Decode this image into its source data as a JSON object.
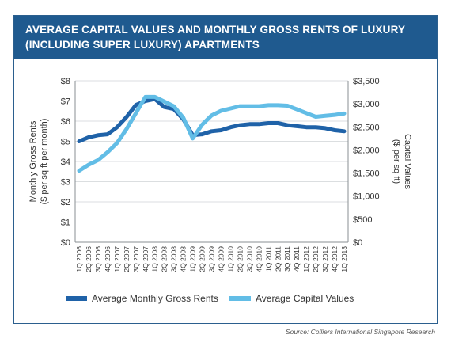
{
  "header": {
    "title_line1": "AVERAGE CAPITAL VALUES AND MONTHLY GROSS RENTS OF LUXURY",
    "title_line2": "(INCLUDING SUPER LUXURY) APARTMENTS"
  },
  "source": "Source: Colliers International Singapore Research",
  "colors": {
    "rents": "#1f62a8",
    "capital": "#62bde6",
    "header_bg": "#1f5a8f"
  },
  "chart_data": {
    "type": "line",
    "title": "AVERAGE CAPITAL VALUES AND MONTHLY GROSS RENTS OF LUXURY (INCLUDING SUPER LUXURY) APARTMENTS",
    "x": [
      "1Q 2006",
      "2Q 2006",
      "3Q 2006",
      "4Q 2006",
      "1Q 2007",
      "2Q 2007",
      "3Q 2007",
      "4Q 2007",
      "1Q 2008",
      "2Q 2008",
      "3Q 2008",
      "4Q 2008",
      "1Q 2009",
      "2Q 2009",
      "3Q 2009",
      "4Q 2009",
      "1Q 2010",
      "2Q 2010",
      "3Q 2010",
      "4Q 2010",
      "1Q 2011",
      "2Q 2011",
      "3Q 2011",
      "4Q 2011",
      "1Q 2012",
      "2Q 2012",
      "3Q 2012",
      "4Q 2012",
      "1Q 2013"
    ],
    "x_tick_labels": [
      "1Q 2006",
      "2Q 2006",
      "3Q 2006",
      "4Q 2006",
      "1Q 2007",
      "2Q 2007",
      "3Q 2007",
      "4Q 2007",
      "1Q 2008",
      "2Q 2008",
      "3Q 2008",
      "4Q 2008",
      "1Q 2009",
      "2Q 2009",
      "3Q 2009",
      "4Q 2009",
      "1Q 2010",
      "2Q 2010",
      "3Q 2010",
      "4Q 2010",
      "1Q 2011",
      "2Q 2011",
      "3Q 2011",
      "4Q 2011",
      "1Q 2012",
      "2Q 2012",
      "3Q 2012",
      "4Q 2012",
      "1Q 2013"
    ],
    "ylabel_left": "Monthly Gross Rents ($ per sq ft per month)",
    "ylabel_right": "Capital Values ($ per sq ft)",
    "ylim_left": [
      0,
      8
    ],
    "ylim_right": [
      0,
      3500
    ],
    "yticks_left": [
      "$0",
      "$1",
      "$2",
      "$3",
      "$4",
      "$5",
      "$6",
      "$7",
      "$8"
    ],
    "yticks_right": [
      "$0",
      "$500",
      "$1,000",
      "$1,500",
      "$2,000",
      "$2,500",
      "$3,000",
      "$3,500"
    ],
    "grid": true,
    "legend_position": "bottom",
    "series": [
      {
        "name": "Average Monthly Gross Rents",
        "axis": "left",
        "values": [
          5.0,
          5.2,
          5.3,
          5.35,
          5.7,
          6.2,
          6.8,
          7.0,
          7.1,
          6.7,
          6.6,
          6.1,
          5.3,
          5.35,
          5.5,
          5.55,
          5.7,
          5.8,
          5.85,
          5.85,
          5.9,
          5.9,
          5.8,
          5.75,
          5.7,
          5.7,
          5.65,
          5.55,
          5.5
        ]
      },
      {
        "name": "Average Capital Values",
        "axis": "right",
        "values": [
          1550,
          1680,
          1780,
          1950,
          2150,
          2450,
          2800,
          3150,
          3150,
          3050,
          2950,
          2700,
          2250,
          2550,
          2750,
          2850,
          2900,
          2950,
          2950,
          2950,
          2970,
          2970,
          2960,
          2880,
          2800,
          2720,
          2740,
          2760,
          2790
        ]
      }
    ]
  }
}
